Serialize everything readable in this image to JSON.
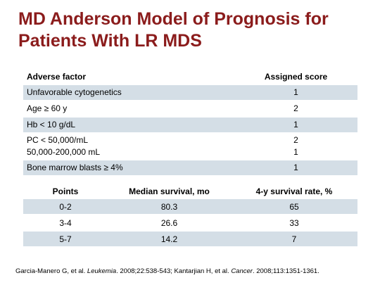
{
  "title": {
    "line1": "MD Anderson Model of Prognosis for",
    "line2": "Patients With LR MDS"
  },
  "table1": {
    "headers": [
      "Adverse factor",
      "Assigned score"
    ],
    "rows": [
      {
        "factor": "Unfavorable cytogenetics",
        "score": "1"
      },
      {
        "factor": "Age ≥ 60 y",
        "score": "2"
      },
      {
        "factor": "Hb < 10 g/dL",
        "score": "1"
      },
      {
        "factor": "PC < 50,000/mL",
        "score": "2",
        "factor2": "50,000-200,000 mL",
        "score2": "1"
      },
      {
        "factor": "Bone marrow blasts ≥ 4%",
        "score": "1"
      }
    ]
  },
  "table2": {
    "headers": [
      "Points",
      "Median survival, mo",
      "4-y survival rate, %"
    ],
    "rows": [
      [
        "0-2",
        "80.3",
        "65"
      ],
      [
        "3-4",
        "26.6",
        "33"
      ],
      [
        "5-7",
        "14.2",
        "7"
      ]
    ]
  },
  "citation": {
    "part1": "Garcia-Manero G, et al. ",
    "journal1": "Leukemia",
    "part2": ". 2008;22:538-543; Kantarjian H, et al. ",
    "journal2": "Cancer",
    "part3": ". 2008;113:1351-1361."
  }
}
